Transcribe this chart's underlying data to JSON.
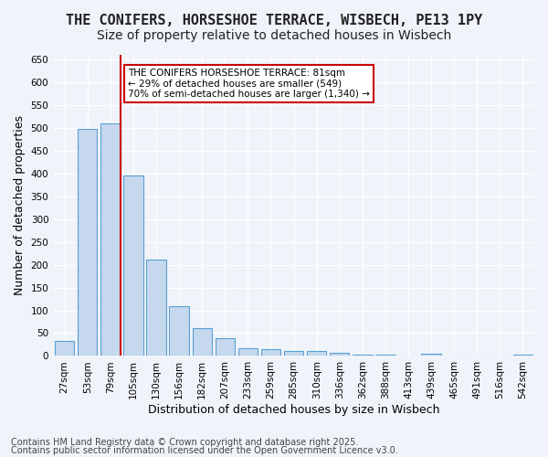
{
  "title1": "THE CONIFERS, HORSESHOE TERRACE, WISBECH, PE13 1PY",
  "title2": "Size of property relative to detached houses in Wisbech",
  "xlabel": "Distribution of detached houses by size in Wisbech",
  "ylabel": "Number of detached properties",
  "categories": [
    "27sqm",
    "53sqm",
    "79sqm",
    "105sqm",
    "130sqm",
    "156sqm",
    "182sqm",
    "207sqm",
    "233sqm",
    "259sqm",
    "285sqm",
    "310sqm",
    "336sqm",
    "362sqm",
    "388sqm",
    "413sqm",
    "439sqm",
    "465sqm",
    "491sqm",
    "516sqm",
    "542sqm"
  ],
  "values": [
    32,
    498,
    510,
    395,
    212,
    110,
    62,
    38,
    17,
    14,
    10,
    10,
    7,
    3,
    3,
    0,
    5,
    1,
    0,
    0,
    3
  ],
  "bar_color": "#c5d8ed",
  "bar_edge_color": "#5a9fd4",
  "redline_x": 2.425,
  "annotation_text": "THE CONIFERS HORSESHOE TERRACE: 81sqm\n← 29% of detached houses are smaller (549)\n70% of semi-detached houses are larger (1,340) →",
  "annotation_box_color": "#ffffff",
  "annotation_box_edge_color": "#cc0000",
  "annotation_text_color": "#000000",
  "redline_color": "#cc0000",
  "ylim": [
    0,
    660
  ],
  "yticks": [
    0,
    50,
    100,
    150,
    200,
    250,
    300,
    350,
    400,
    450,
    500,
    550,
    600,
    650
  ],
  "background_color": "#f0f4fa",
  "footer1": "Contains HM Land Registry data © Crown copyright and database right 2025.",
  "footer2": "Contains public sector information licensed under the Open Government Licence v3.0.",
  "title_fontsize": 11,
  "subtitle_fontsize": 10,
  "axis_label_fontsize": 9,
  "tick_fontsize": 7.5,
  "footer_fontsize": 7
}
